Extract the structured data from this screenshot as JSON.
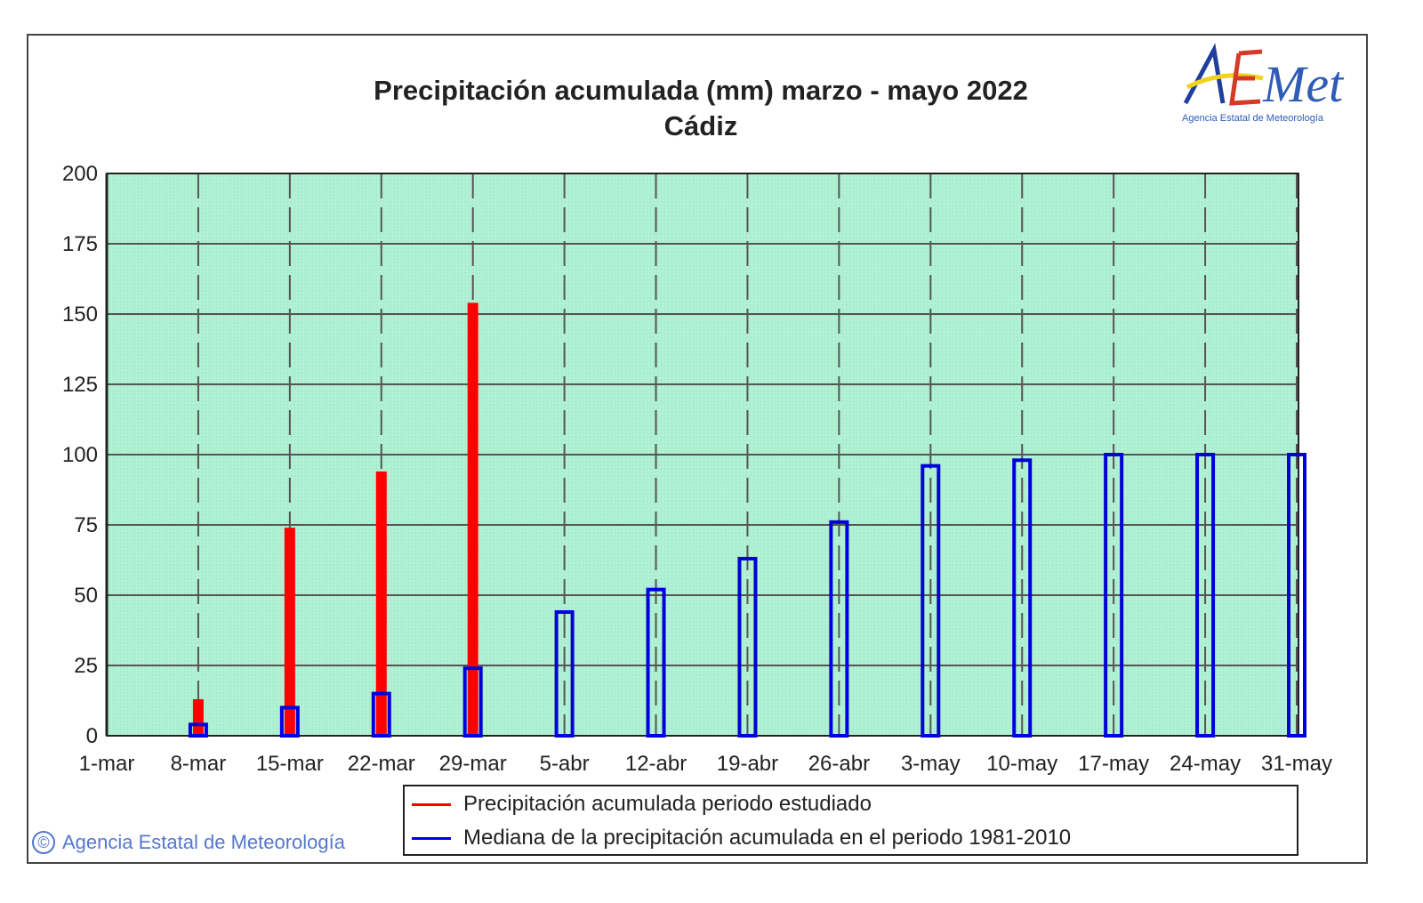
{
  "chart_data": {
    "type": "bar",
    "title": "Precipitación acumulada (mm) marzo - mayo 2022",
    "subtitle": "Cádiz",
    "categories": [
      "1-mar",
      "8-mar",
      "15-mar",
      "22-mar",
      "29-mar",
      "5-abr",
      "12-abr",
      "19-abr",
      "26-abr",
      "3-may",
      "10-may",
      "17-may",
      "24-may",
      "31-may"
    ],
    "series": [
      {
        "name": "Precipitación acumulada periodo estudiado",
        "color": "#ff0000",
        "values": [
          null,
          13,
          74,
          94,
          154,
          null,
          null,
          null,
          null,
          null,
          null,
          null,
          null,
          null
        ]
      },
      {
        "name": "Mediana de la precipitación acumulada en el periodo 1981-2010",
        "color": "#0000dd",
        "values": [
          null,
          4,
          10,
          15,
          24,
          44,
          52,
          63,
          76,
          96,
          98,
          100,
          100,
          100
        ]
      }
    ],
    "ylim": [
      0,
      200
    ],
    "yticks": [
      0,
      25,
      50,
      75,
      100,
      125,
      150,
      175,
      200
    ],
    "grid": true,
    "legend": "bottom",
    "plot_background": "#aef0d2"
  },
  "logo": {
    "text": "AEMet",
    "subtext": "Agencia Estatal de Meteorología"
  },
  "copyright": {
    "symbol": "©",
    "text": "Agencia Estatal de Meteorología"
  }
}
